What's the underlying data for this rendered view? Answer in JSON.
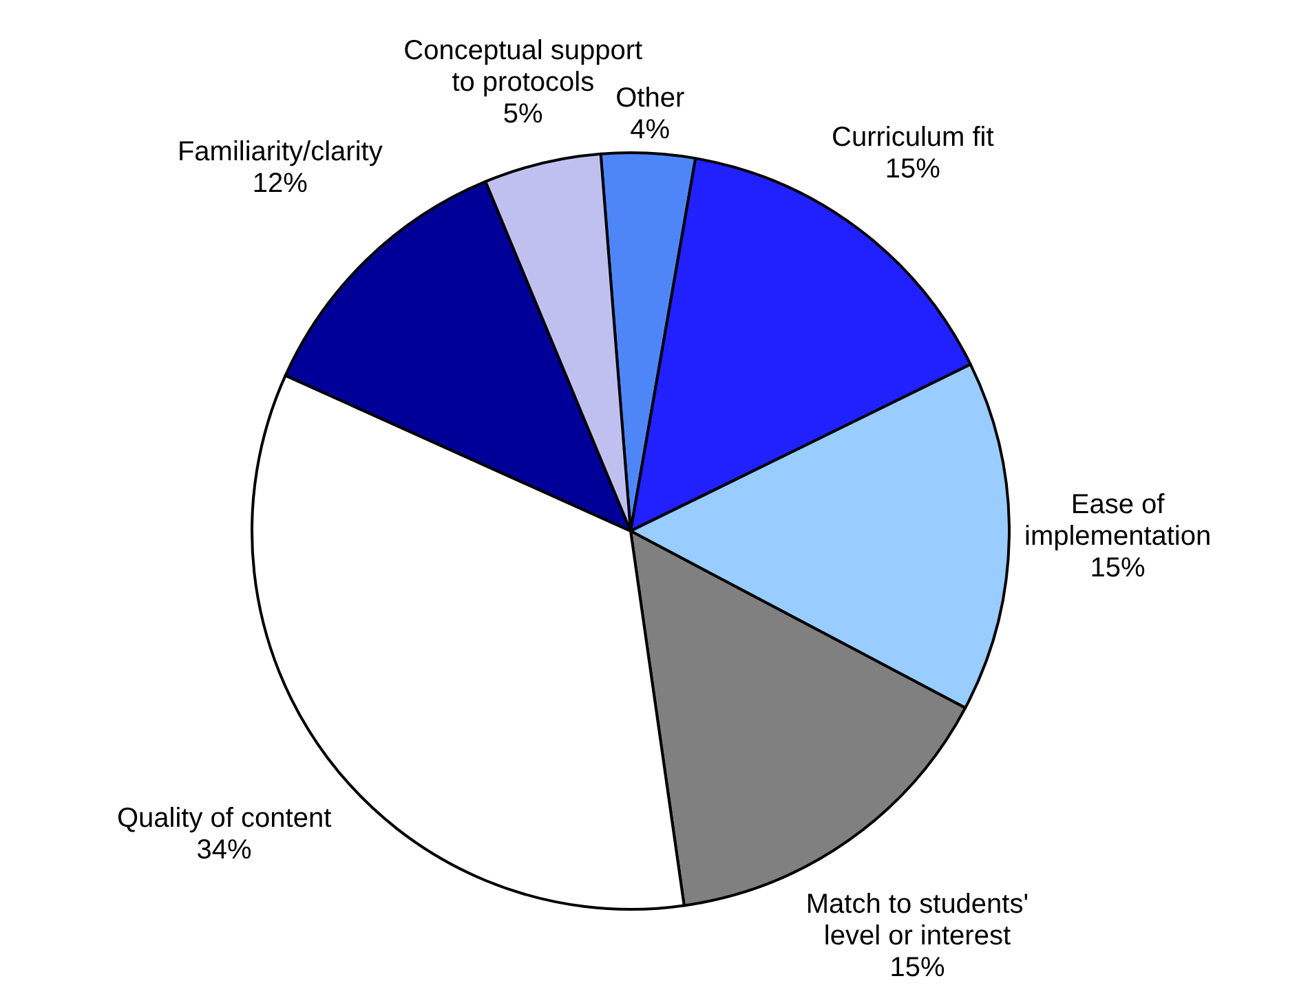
{
  "chart_data": {
    "type": "pie",
    "categories": [
      "Other",
      "Curriculum fit",
      "Ease of implementation",
      "Match to students' level or interest",
      "Quality of content",
      "Familiarity/clarity",
      "Conceptual support to protocols"
    ],
    "values": [
      4,
      15,
      15,
      15,
      34,
      12,
      5
    ],
    "colors": [
      "#4f86f7",
      "#2121ff",
      "#99ccff",
      "#808080",
      "#ffffff",
      "#000099",
      "#c0c0f0"
    ],
    "value_labels": [
      "4%",
      "15%",
      "15%",
      "15%",
      "34%",
      "12%",
      "5%"
    ]
  }
}
